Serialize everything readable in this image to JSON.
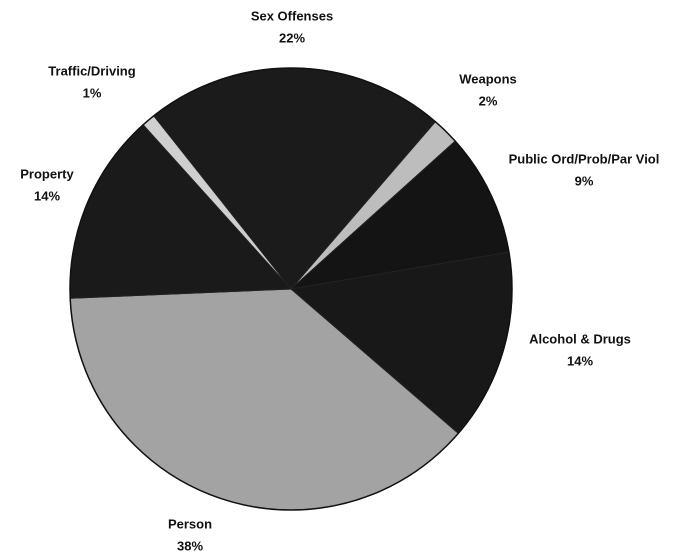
{
  "chart_data": {
    "type": "pie",
    "categories": [
      "Sex Offenses",
      "Weapons",
      "Public Ord/Prob/Par Viol",
      "Alcohol & Drugs",
      "Person",
      "Property",
      "Traffic/Driving"
    ],
    "values": [
      22,
      2,
      9,
      14,
      38,
      14,
      1
    ],
    "value_labels": [
      "22%",
      "2%",
      "9%",
      "14%",
      "38%",
      "14%",
      "1%"
    ],
    "colors": [
      "#1b1b1b",
      "#bdbdbd",
      "#141414",
      "#181818",
      "#a3a3a3",
      "#1a1a1a",
      "#cfcfcf"
    ]
  }
}
